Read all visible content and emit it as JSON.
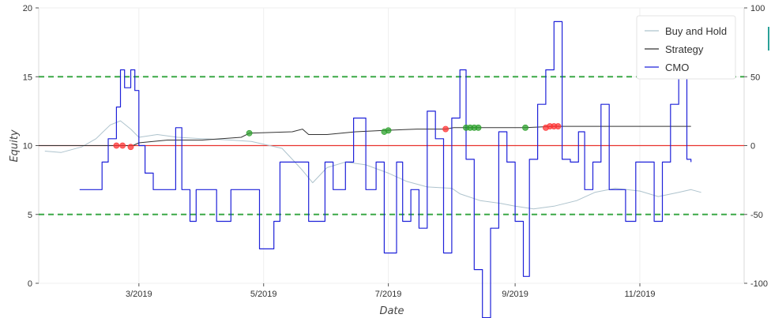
{
  "chart_data": {
    "type": "line",
    "xlabel": "Date",
    "ylabel": "Equity",
    "ylim": [
      0,
      20
    ],
    "y2lim": [
      -100,
      100
    ],
    "yticks": [
      "0",
      "5",
      "10",
      "15",
      "20"
    ],
    "y2ticks": [
      "-100",
      "-50",
      "0",
      "50",
      "100"
    ],
    "xticks": [
      "3/2019",
      "5/2019",
      "7/2019",
      "9/2019",
      "11/2019"
    ],
    "x_range": [
      "2019-01-11",
      "2019-12-22"
    ],
    "legend": {
      "placement": "top-right",
      "entries": [
        "Buy and Hold",
        "Strategy",
        "CMO"
      ]
    },
    "reference_lines": [
      {
        "axis": "y",
        "value": 10,
        "color": "#e8322d",
        "style": "solid"
      },
      {
        "axis": "y2",
        "value": 50,
        "color": "#3aa847",
        "style": "dashed"
      },
      {
        "axis": "y2",
        "value": -50,
        "color": "#3aa847",
        "style": "dashed"
      }
    ],
    "colors": {
      "buy_and_hold": "#aec3cd",
      "strategy": "#333333",
      "cmo": "#1f22d9",
      "buy_marker": "#2ca02c",
      "sell_marker": "#ff3333"
    },
    "series": [
      {
        "name": "Buy and Hold",
        "axis": "y",
        "x": [
          "2019-01-14",
          "2019-01-22",
          "2019-02-01",
          "2019-02-08",
          "2019-02-15",
          "2019-02-20",
          "2019-02-25",
          "2019-03-01",
          "2019-03-10",
          "2019-03-20",
          "2019-04-01",
          "2019-04-15",
          "2019-04-25",
          "2019-05-01",
          "2019-05-10",
          "2019-05-15",
          "2019-05-20",
          "2019-05-25",
          "2019-06-01",
          "2019-06-10",
          "2019-06-20",
          "2019-07-01",
          "2019-07-10",
          "2019-07-20",
          "2019-08-01",
          "2019-08-05",
          "2019-08-15",
          "2019-08-25",
          "2019-09-01",
          "2019-09-10",
          "2019-09-20",
          "2019-10-01",
          "2019-10-10",
          "2019-10-20",
          "2019-11-01",
          "2019-11-10",
          "2019-11-20",
          "2019-11-26",
          "2019-12-01"
        ],
        "y": [
          9.6,
          9.5,
          9.9,
          10.5,
          11.5,
          11.8,
          11.2,
          10.6,
          10.8,
          10.6,
          10.5,
          10.4,
          10.3,
          10.1,
          9.8,
          9.0,
          8.2,
          7.3,
          8.4,
          8.8,
          8.6,
          8.0,
          7.4,
          7.0,
          6.9,
          6.5,
          6.0,
          5.8,
          5.6,
          5.4,
          5.6,
          6.0,
          6.6,
          6.9,
          6.7,
          6.3,
          6.6,
          6.8,
          6.6
        ]
      },
      {
        "name": "Strategy",
        "axis": "y",
        "x": [
          "2019-01-11",
          "2019-02-18",
          "2019-02-22",
          "2019-02-26",
          "2019-03-01",
          "2019-03-15",
          "2019-04-01",
          "2019-04-20",
          "2019-04-24",
          "2019-05-15",
          "2019-05-20",
          "2019-05-23",
          "2019-06-01",
          "2019-06-15",
          "2019-06-29",
          "2019-07-15",
          "2019-07-29",
          "2019-08-02",
          "2019-08-10",
          "2019-09-01",
          "2019-09-06",
          "2019-09-20",
          "2019-10-01",
          "2019-11-01",
          "2019-11-26"
        ],
        "y": [
          10.0,
          10.0,
          10.0,
          10.0,
          10.2,
          10.4,
          10.4,
          10.6,
          10.9,
          11.0,
          11.2,
          10.8,
          10.8,
          11.0,
          11.1,
          11.2,
          11.2,
          11.3,
          11.3,
          11.3,
          11.3,
          11.4,
          11.4,
          11.4,
          11.4
        ]
      },
      {
        "name": "CMO",
        "axis": "y2",
        "x": [
          "2019-01-31",
          "2019-02-08",
          "2019-02-11",
          "2019-02-14",
          "2019-02-18",
          "2019-02-20",
          "2019-02-22",
          "2019-02-25",
          "2019-02-27",
          "2019-03-01",
          "2019-03-04",
          "2019-03-08",
          "2019-03-15",
          "2019-03-19",
          "2019-03-22",
          "2019-03-26",
          "2019-03-29",
          "2019-04-03",
          "2019-04-08",
          "2019-04-15",
          "2019-04-20",
          "2019-04-26",
          "2019-04-29",
          "2019-05-06",
          "2019-05-09",
          "2019-05-16",
          "2019-05-23",
          "2019-05-31",
          "2019-06-04",
          "2019-06-10",
          "2019-06-14",
          "2019-06-20",
          "2019-06-25",
          "2019-06-29",
          "2019-07-05",
          "2019-07-08",
          "2019-07-12",
          "2019-07-16",
          "2019-07-20",
          "2019-07-24",
          "2019-07-28",
          "2019-08-01",
          "2019-08-05",
          "2019-08-08",
          "2019-08-12",
          "2019-08-16",
          "2019-08-20",
          "2019-08-24",
          "2019-08-28",
          "2019-09-01",
          "2019-09-05",
          "2019-09-08",
          "2019-09-12",
          "2019-09-16",
          "2019-09-20",
          "2019-09-24",
          "2019-09-28",
          "2019-10-02",
          "2019-10-05",
          "2019-10-09",
          "2019-10-13",
          "2019-10-17",
          "2019-10-21",
          "2019-10-25",
          "2019-10-30",
          "2019-11-04",
          "2019-11-08",
          "2019-11-12",
          "2019-11-16",
          "2019-11-20",
          "2019-11-24",
          "2019-11-26"
        ],
        "y": [
          -32,
          -32,
          -12,
          5,
          28,
          55,
          42,
          55,
          40,
          0,
          -20,
          -32,
          -32,
          13,
          -32,
          -55,
          -32,
          -32,
          -55,
          -32,
          -32,
          -32,
          -75,
          -55,
          -12,
          -12,
          -55,
          -12,
          -32,
          -12,
          20,
          -32,
          -12,
          -78,
          -12,
          -55,
          -32,
          -60,
          25,
          5,
          -78,
          20,
          55,
          -10,
          -90,
          -125,
          -60,
          10,
          -12,
          -55,
          -95,
          -10,
          30,
          55,
          90,
          -10,
          -12,
          10,
          -32,
          -12,
          30,
          -32,
          -32,
          -55,
          -12,
          -12,
          -55,
          -12,
          30,
          55,
          -10,
          -12
        ]
      }
    ],
    "buy_markers": {
      "x": [
        "2019-04-24",
        "2019-06-29",
        "2019-07-01",
        "2019-08-08",
        "2019-08-10",
        "2019-08-12",
        "2019-08-14",
        "2019-09-06"
      ],
      "y": [
        10.9,
        11.0,
        11.1,
        11.3,
        11.3,
        11.3,
        11.3,
        11.3
      ]
    },
    "sell_markers": {
      "x": [
        "2019-02-18",
        "2019-02-21",
        "2019-02-25",
        "2019-07-29",
        "2019-09-16",
        "2019-09-18",
        "2019-09-20",
        "2019-09-22"
      ],
      "y": [
        10.0,
        10.0,
        9.9,
        11.2,
        11.3,
        11.4,
        11.4,
        11.4
      ]
    }
  }
}
